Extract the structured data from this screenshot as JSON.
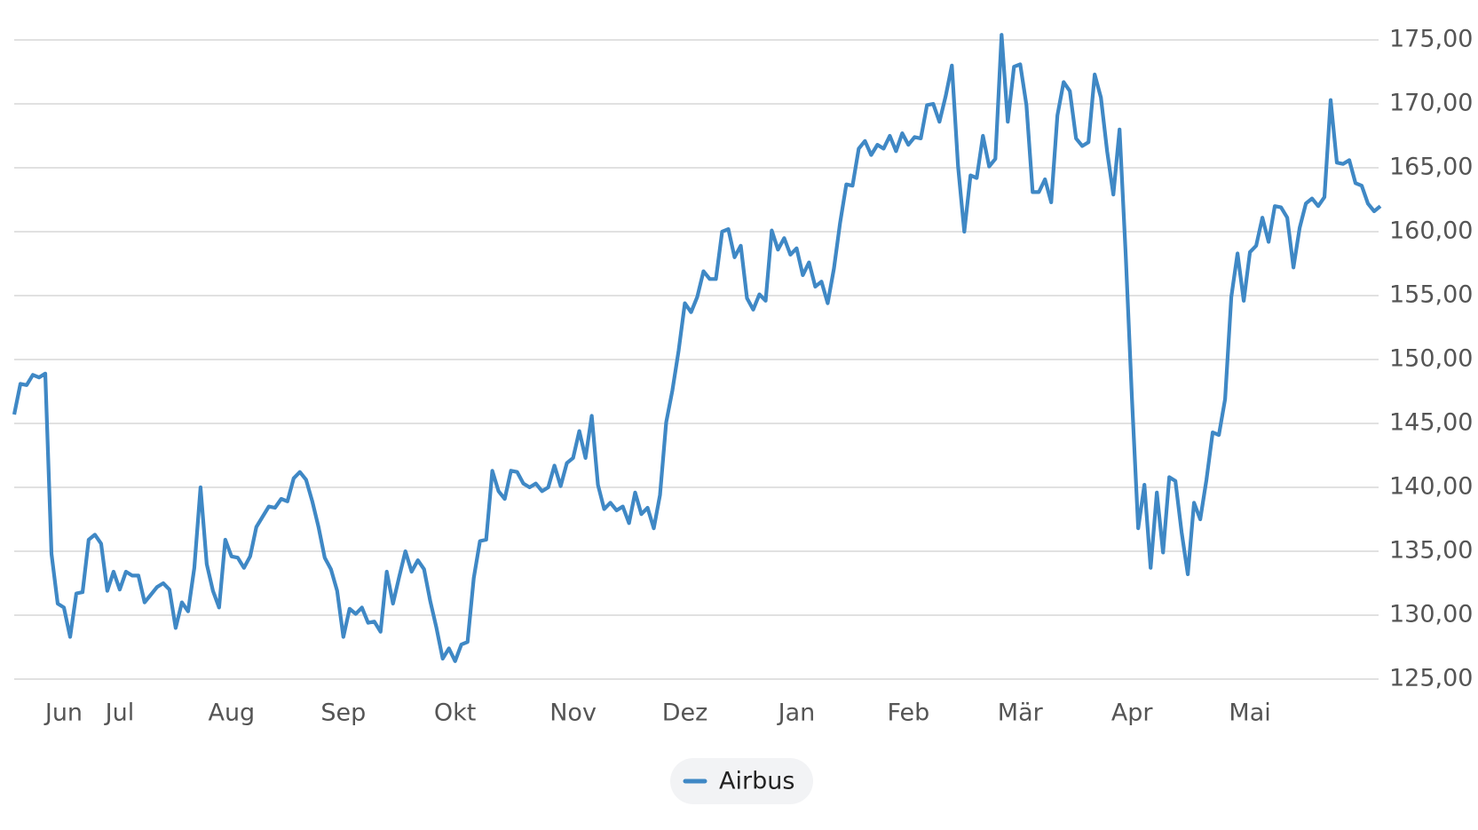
{
  "chart_data": {
    "type": "line",
    "series": [
      {
        "name": "Airbus",
        "color": "#3f88c5",
        "values": [
          145.7,
          148.1,
          148.0,
          148.8,
          148.6,
          148.9,
          134.8,
          130.9,
          130.6,
          128.3,
          131.7,
          131.8,
          135.9,
          136.3,
          135.6,
          131.9,
          133.4,
          132.0,
          133.4,
          133.1,
          133.1,
          131.0,
          131.6,
          132.2,
          132.5,
          132.0,
          129.0,
          131.0,
          130.3,
          133.7,
          140.0,
          134.0,
          131.9,
          130.6,
          135.9,
          134.6,
          134.5,
          133.7,
          134.6,
          136.9,
          137.7,
          138.5,
          138.4,
          139.1,
          138.9,
          140.7,
          141.2,
          140.6,
          138.9,
          136.9,
          134.5,
          133.6,
          131.9,
          128.3,
          130.5,
          130.1,
          130.6,
          129.4,
          129.5,
          128.7,
          133.4,
          130.9,
          133.0,
          135.0,
          133.4,
          134.3,
          133.6,
          131.1,
          129.0,
          126.6,
          127.4,
          126.4,
          127.7,
          127.9,
          132.9,
          135.8,
          135.9,
          141.3,
          139.7,
          139.1,
          141.3,
          141.2,
          140.3,
          140.0,
          140.3,
          139.7,
          140.0,
          141.7,
          140.1,
          141.9,
          142.3,
          144.4,
          142.3,
          145.6,
          140.2,
          138.3,
          138.8,
          138.2,
          138.5,
          137.2,
          139.6,
          137.9,
          138.4,
          136.8,
          139.4,
          145.1,
          147.6,
          150.7,
          154.4,
          153.7,
          154.9,
          156.9,
          156.3,
          156.3,
          160.0,
          160.2,
          158.0,
          158.9,
          154.8,
          153.9,
          155.1,
          154.6,
          160.1,
          158.6,
          159.5,
          158.2,
          158.7,
          156.6,
          157.6,
          155.7,
          156.1,
          154.4,
          157.1,
          160.7,
          163.7,
          163.6,
          166.5,
          167.1,
          166.0,
          166.8,
          166.5,
          167.5,
          166.3,
          167.7,
          166.8,
          167.4,
          167.3,
          169.9,
          170.0,
          168.6,
          170.6,
          173.0,
          165.1,
          160.0,
          164.4,
          164.2,
          167.5,
          165.1,
          165.7,
          175.4,
          168.6,
          172.9,
          173.1,
          169.9,
          163.1,
          163.1,
          164.1,
          162.3,
          169.1,
          171.7,
          171.0,
          167.3,
          166.7,
          167.0,
          172.3,
          170.5,
          166.3,
          162.9,
          168.0,
          158.1,
          146.9,
          136.8,
          140.2,
          133.7,
          139.6,
          134.9,
          140.8,
          140.5,
          136.5,
          133.2,
          138.8,
          137.5,
          140.6,
          144.3,
          144.1,
          146.9,
          154.9,
          158.3,
          154.6,
          158.4,
          158.9,
          161.1,
          159.2,
          162.0,
          161.9,
          161.1,
          157.2,
          160.3,
          162.2,
          162.6,
          162.0,
          162.7,
          170.3,
          165.4,
          165.3,
          165.6,
          163.8,
          163.6,
          162.2,
          161.6,
          162.0
        ]
      }
    ],
    "xlim": [
      0,
      220
    ],
    "xticks": [
      {
        "value": 8,
        "label": "Jun"
      },
      {
        "value": 17,
        "label": "Jul"
      },
      {
        "value": 35,
        "label": "Aug"
      },
      {
        "value": 53,
        "label": "Sep"
      },
      {
        "value": 71,
        "label": "Okt"
      },
      {
        "value": 90,
        "label": "Nov"
      },
      {
        "value": 108,
        "label": "Dez"
      },
      {
        "value": 126,
        "label": "Jan"
      },
      {
        "value": 144,
        "label": "Feb"
      },
      {
        "value": 162,
        "label": "Mär"
      },
      {
        "value": 180,
        "label": "Apr"
      },
      {
        "value": 199,
        "label": "Mai"
      }
    ],
    "ylim": [
      125,
      175
    ],
    "yticks": [
      {
        "value": 125,
        "label": "125,00"
      },
      {
        "value": 130,
        "label": "130,00"
      },
      {
        "value": 135,
        "label": "135,00"
      },
      {
        "value": 140,
        "label": "140,00"
      },
      {
        "value": 145,
        "label": "145,00"
      },
      {
        "value": 150,
        "label": "150,00"
      },
      {
        "value": 155,
        "label": "155,00"
      },
      {
        "value": 160,
        "label": "160,00"
      },
      {
        "value": 165,
        "label": "165,00"
      },
      {
        "value": 170,
        "label": "170,00"
      },
      {
        "value": 175,
        "label": "175,00"
      }
    ],
    "grid": true
  }
}
